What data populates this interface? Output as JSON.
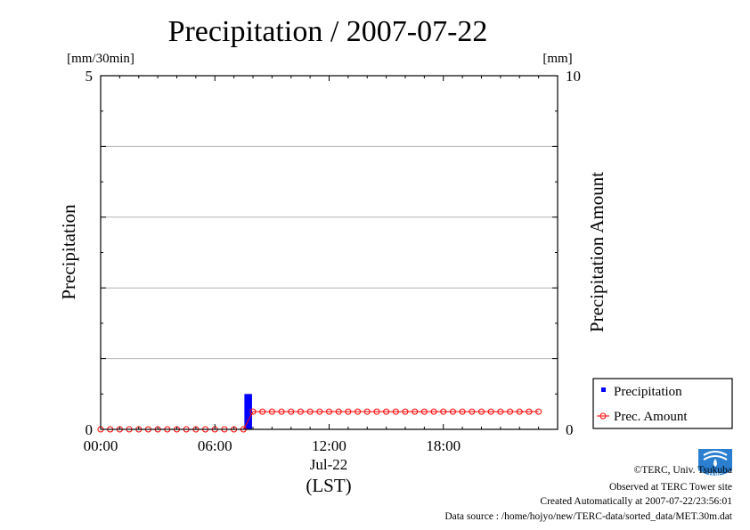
{
  "chart_data": {
    "type": "bar",
    "title": "Precipitation / 2007-07-22",
    "left_unit": "[mm/30min]",
    "right_unit": "[mm]",
    "ylabel_left": "Precipitation",
    "ylabel_right": "Precipitation Amount",
    "ylim_left": [
      0,
      5
    ],
    "ylim_right": [
      0,
      10
    ],
    "left_tick_labels": [
      "0",
      "5"
    ],
    "right_tick_labels": [
      "0",
      "10"
    ],
    "xlim_hours": [
      0,
      24
    ],
    "x_ticks": [
      {
        "hour": 0,
        "label": "00:00"
      },
      {
        "hour": 6,
        "label": "06:00"
      },
      {
        "hour": 12,
        "label": "12:00"
      },
      {
        "hour": 18,
        "label": "18:00"
      }
    ],
    "date_label": "Jul-22",
    "time_zone_label": "(LST)",
    "grid": "horizontal",
    "legend_position": "bottom-right",
    "series": [
      {
        "name": "Precipitation",
        "kind": "bar",
        "axis": "left",
        "color": "#0000ff",
        "start_hour": 0,
        "step_hours": 0.5,
        "values": [
          0,
          0,
          0,
          0,
          0,
          0,
          0,
          0,
          0,
          0,
          0,
          0,
          0,
          0,
          0,
          0.5,
          0,
          0,
          0,
          0,
          0,
          0,
          0,
          0,
          0,
          0,
          0,
          0,
          0,
          0,
          0,
          0,
          0,
          0,
          0,
          0,
          0,
          0,
          0,
          0,
          0,
          0,
          0,
          0,
          0,
          0,
          0,
          0
        ]
      },
      {
        "name": "Prec. Amount",
        "kind": "line-markers",
        "axis": "right",
        "color": "#ff0000",
        "start_hour": 0,
        "step_hours": 0.5,
        "values": [
          0,
          0,
          0,
          0,
          0,
          0,
          0,
          0,
          0,
          0,
          0,
          0,
          0,
          0,
          0,
          0,
          0.5,
          0.5,
          0.5,
          0.5,
          0.5,
          0.5,
          0.5,
          0.5,
          0.5,
          0.5,
          0.5,
          0.5,
          0.5,
          0.5,
          0.5,
          0.5,
          0.5,
          0.5,
          0.5,
          0.5,
          0.5,
          0.5,
          0.5,
          0.5,
          0.5,
          0.5,
          0.5,
          0.5,
          0.5,
          0.5,
          0.5
        ]
      }
    ]
  },
  "logo": {
    "text": "TERC"
  },
  "footer": {
    "copyright": "©TERC, Univ. Tsukuba",
    "site": "Observed at TERC Tower site",
    "created": "Created Automatically at 2007-07-22/23:56:01",
    "source": "Data source : /home/hojyo/new/TERC-data/sorted_data/MET.30m.dat"
  }
}
